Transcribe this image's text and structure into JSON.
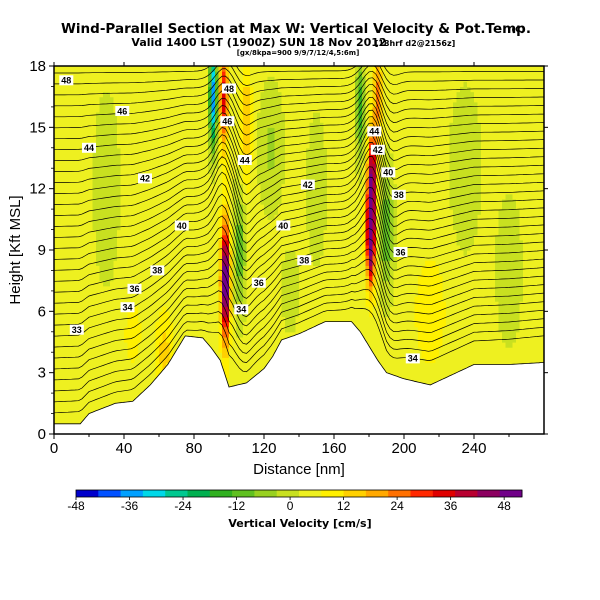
{
  "chart_data": {
    "type": "heatmap",
    "title": "Wind-Parallel Section at Max W: Vertical Velocity & Pot.Temp.",
    "title_mark": "(C)",
    "subtitle": "Valid 1400 LST (1900Z) SUN 18 Nov 2012",
    "subtitle_tag": "[18hrf d2@2156z]",
    "subtitle_line2": "[gx/8kpa=900 9/9/7/12/4,5:6m]",
    "xlabel": "Distance [nm]",
    "ylabel": "Height [Kft MSL]",
    "xlim": [
      0,
      280
    ],
    "ylim": [
      0,
      18
    ],
    "x_ticks": [
      0,
      40,
      80,
      120,
      160,
      200,
      240
    ],
    "y_ticks": [
      0,
      3,
      6,
      9,
      12,
      15,
      18
    ],
    "colorbar": {
      "label": "Vertical Velocity [cm/s]",
      "range": [
        -48,
        52
      ],
      "ticks": [
        -48,
        -36,
        -24,
        -12,
        0,
        12,
        24,
        36,
        48
      ],
      "colors": [
        "#0000cc",
        "#0050ff",
        "#00a0ff",
        "#00d8e8",
        "#00c890",
        "#00b050",
        "#30b020",
        "#60c020",
        "#98d020",
        "#c8e020",
        "#eef020",
        "#fff000",
        "#ffd000",
        "#ffa800",
        "#ff7000",
        "#ff2800",
        "#e00000",
        "#b80030",
        "#8c0060",
        "#700088"
      ]
    },
    "background_w": 4,
    "terrain": [
      [
        0,
        0.5
      ],
      [
        15,
        0.5
      ],
      [
        20,
        1.0
      ],
      [
        35,
        1.5
      ],
      [
        45,
        1.6
      ],
      [
        55,
        2.4
      ],
      [
        65,
        3.4
      ],
      [
        75,
        4.8
      ],
      [
        85,
        4.7
      ],
      [
        90,
        4.2
      ],
      [
        95,
        3.6
      ],
      [
        100,
        2.3
      ],
      [
        110,
        2.5
      ],
      [
        120,
        3.2
      ],
      [
        125,
        3.8
      ],
      [
        130,
        4.6
      ],
      [
        140,
        4.9
      ],
      [
        150,
        5.3
      ],
      [
        155,
        5.5
      ],
      [
        170,
        5.5
      ],
      [
        175,
        5.0
      ],
      [
        180,
        4.3
      ],
      [
        185,
        3.6
      ],
      [
        190,
        3.0
      ],
      [
        200,
        2.7
      ],
      [
        215,
        2.4
      ],
      [
        225,
        2.8
      ],
      [
        230,
        3.0
      ],
      [
        240,
        3.4
      ],
      [
        260,
        3.4
      ],
      [
        280,
        3.5
      ]
    ],
    "w_features": [
      {
        "x": 98,
        "y": 7.5,
        "sx": 2.5,
        "sy": 2.8,
        "amp": 55
      },
      {
        "x": 97,
        "y": 16.5,
        "sx": 2.5,
        "sy": 2.5,
        "amp": 30
      },
      {
        "x": 91,
        "y": 16.5,
        "sx": 2.2,
        "sy": 2.5,
        "amp": -40
      },
      {
        "x": 181,
        "y": 10,
        "sx": 2.5,
        "sy": 2.5,
        "amp": 58
      },
      {
        "x": 182,
        "y": 13,
        "sx": 2.5,
        "sy": 2,
        "amp": 30
      },
      {
        "x": 175,
        "y": 16,
        "sx": 2.5,
        "sy": 2.5,
        "amp": -20
      },
      {
        "x": 185,
        "y": 16.5,
        "sx": 2.5,
        "sy": 2.5,
        "amp": 20
      },
      {
        "x": 106,
        "y": 9,
        "sx": 3.5,
        "sy": 3,
        "amp": -16
      },
      {
        "x": 190,
        "y": 10,
        "sx": 4,
        "sy": 3,
        "amp": -16
      },
      {
        "x": 110,
        "y": 15,
        "sx": 3,
        "sy": 3,
        "amp": 14
      },
      {
        "x": 124,
        "y": 14,
        "sx": 7,
        "sy": 3,
        "amp": -8
      },
      {
        "x": 63,
        "y": 4,
        "sx": 5,
        "sy": 2,
        "amp": 10
      },
      {
        "x": 215,
        "y": 6,
        "sx": 10,
        "sy": 3,
        "amp": 6
      },
      {
        "x": 30,
        "y": 12,
        "sx": 8,
        "sy": 5,
        "amp": -5
      },
      {
        "x": 150,
        "y": 12,
        "sx": 6,
        "sy": 4,
        "amp": -5
      },
      {
        "x": 235,
        "y": 13,
        "sx": 9,
        "sy": 4,
        "amp": -6
      },
      {
        "x": 260,
        "y": 8,
        "sx": 8,
        "sy": 4,
        "amp": -5
      },
      {
        "x": 135,
        "y": 7,
        "sx": 5,
        "sy": 2,
        "amp": -6
      },
      {
        "x": 45,
        "y": 5,
        "sx": 6,
        "sy": 2,
        "amp": 5
      }
    ],
    "theta_labels": [
      {
        "x": 7,
        "y": 17.3,
        "text": "48"
      },
      {
        "x": 39,
        "y": 15.8,
        "text": "46"
      },
      {
        "x": 20,
        "y": 14.0,
        "text": "44"
      },
      {
        "x": 52,
        "y": 12.5,
        "text": "42"
      },
      {
        "x": 73,
        "y": 10.2,
        "text": "40"
      },
      {
        "x": 59,
        "y": 8.0,
        "text": "38"
      },
      {
        "x": 46,
        "y": 7.1,
        "text": "36"
      },
      {
        "x": 42,
        "y": 6.2,
        "text": "34"
      },
      {
        "x": 13,
        "y": 5.1,
        "text": "33"
      },
      {
        "x": 100,
        "y": 16.9,
        "text": "48"
      },
      {
        "x": 99,
        "y": 15.3,
        "text": "46"
      },
      {
        "x": 109,
        "y": 13.4,
        "text": "44"
      },
      {
        "x": 145,
        "y": 12.2,
        "text": "42"
      },
      {
        "x": 131,
        "y": 10.2,
        "text": "40"
      },
      {
        "x": 143,
        "y": 8.5,
        "text": "38"
      },
      {
        "x": 117,
        "y": 7.4,
        "text": "36"
      },
      {
        "x": 107,
        "y": 6.1,
        "text": "34"
      },
      {
        "x": 183,
        "y": 14.8,
        "text": "44"
      },
      {
        "x": 185,
        "y": 13.9,
        "text": "42"
      },
      {
        "x": 191,
        "y": 12.8,
        "text": "40"
      },
      {
        "x": 197,
        "y": 11.7,
        "text": "38"
      },
      {
        "x": 198,
        "y": 8.9,
        "text": "36"
      },
      {
        "x": 205,
        "y": 3.7,
        "text": "34"
      }
    ]
  }
}
